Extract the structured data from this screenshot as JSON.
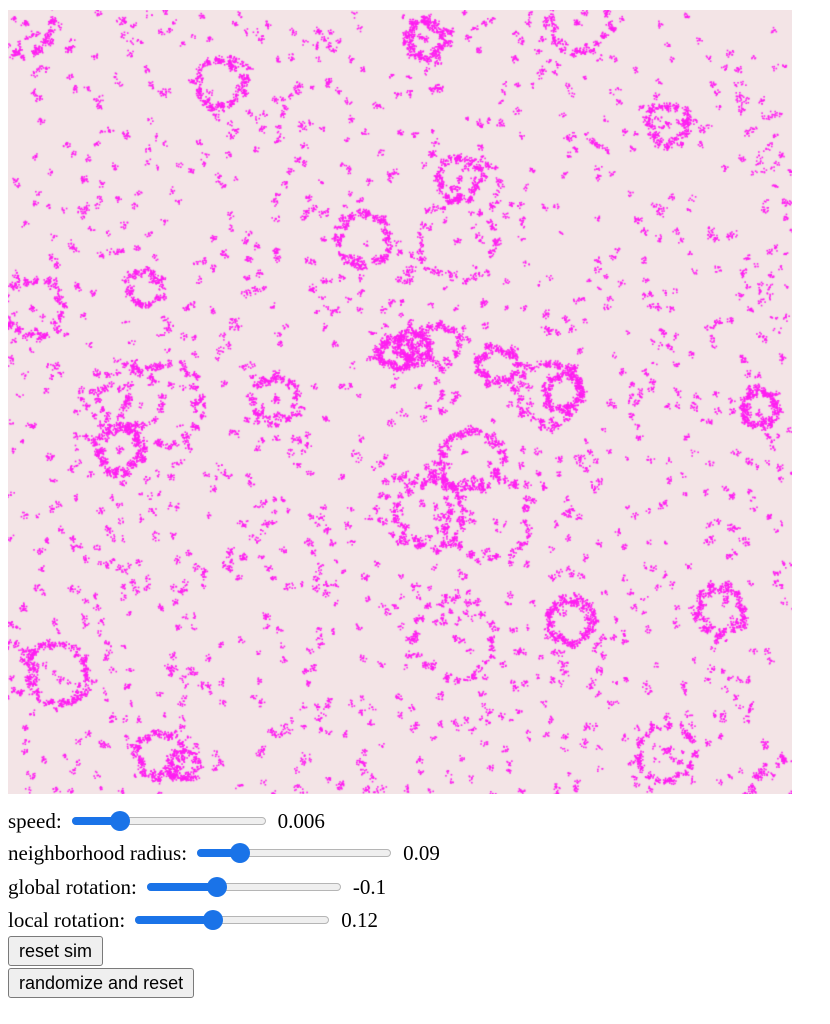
{
  "simulation": {
    "background_color": "#f3e4e6",
    "particle_color": "#ff1ff2"
  },
  "controls": [
    {
      "id": "speed",
      "label": "speed:",
      "value_text": "0.006",
      "position": 0.25
    },
    {
      "id": "neighborhood-radius",
      "label": "neighborhood radius:",
      "value_text": "0.09",
      "position": 0.22
    },
    {
      "id": "global-rotation",
      "label": "global rotation:",
      "value_text": "-0.1",
      "position": 0.36
    },
    {
      "id": "local-rotation",
      "label": "local rotation:",
      "value_text": "0.12",
      "position": 0.4
    }
  ],
  "buttons": {
    "reset_label": "reset sim",
    "randomize_label": "randomize and reset"
  }
}
